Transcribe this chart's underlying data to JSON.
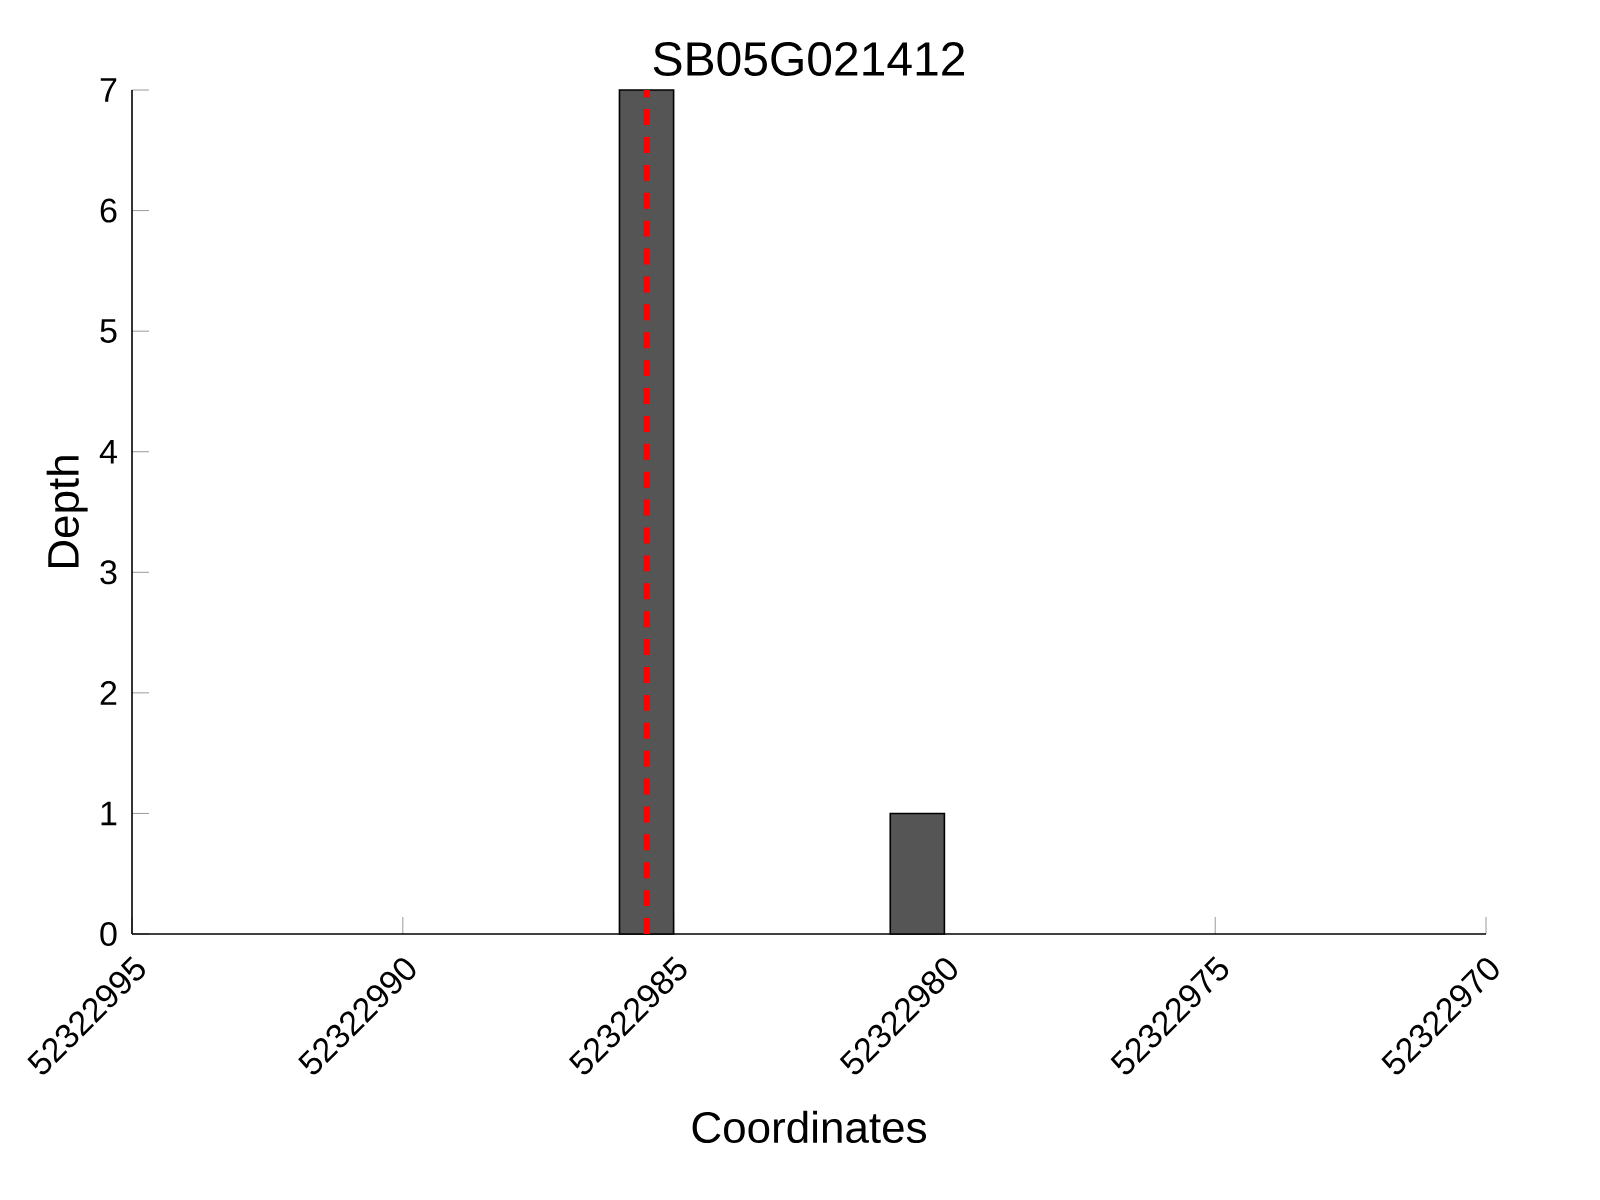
{
  "chart_data": {
    "type": "bar",
    "title": "SB05G021412",
    "xlabel": "Coordinates",
    "ylabel": "Depth",
    "x": [
      52322985.5,
      52322980.5
    ],
    "values": [
      7,
      1
    ],
    "color": "#555555",
    "xlim": [
      52322995,
      52322970
    ],
    "xticks": [
      52322995,
      52322990,
      52322985,
      52322980,
      52322975,
      52322970
    ],
    "ylim": [
      0,
      7
    ],
    "yticks": [
      0,
      1,
      2,
      3,
      4,
      5,
      6,
      7
    ],
    "ref_lines": [
      {
        "axis": "x",
        "value": 52322985.5,
        "color": "#ff0000",
        "line_style": "dashed"
      }
    ]
  }
}
